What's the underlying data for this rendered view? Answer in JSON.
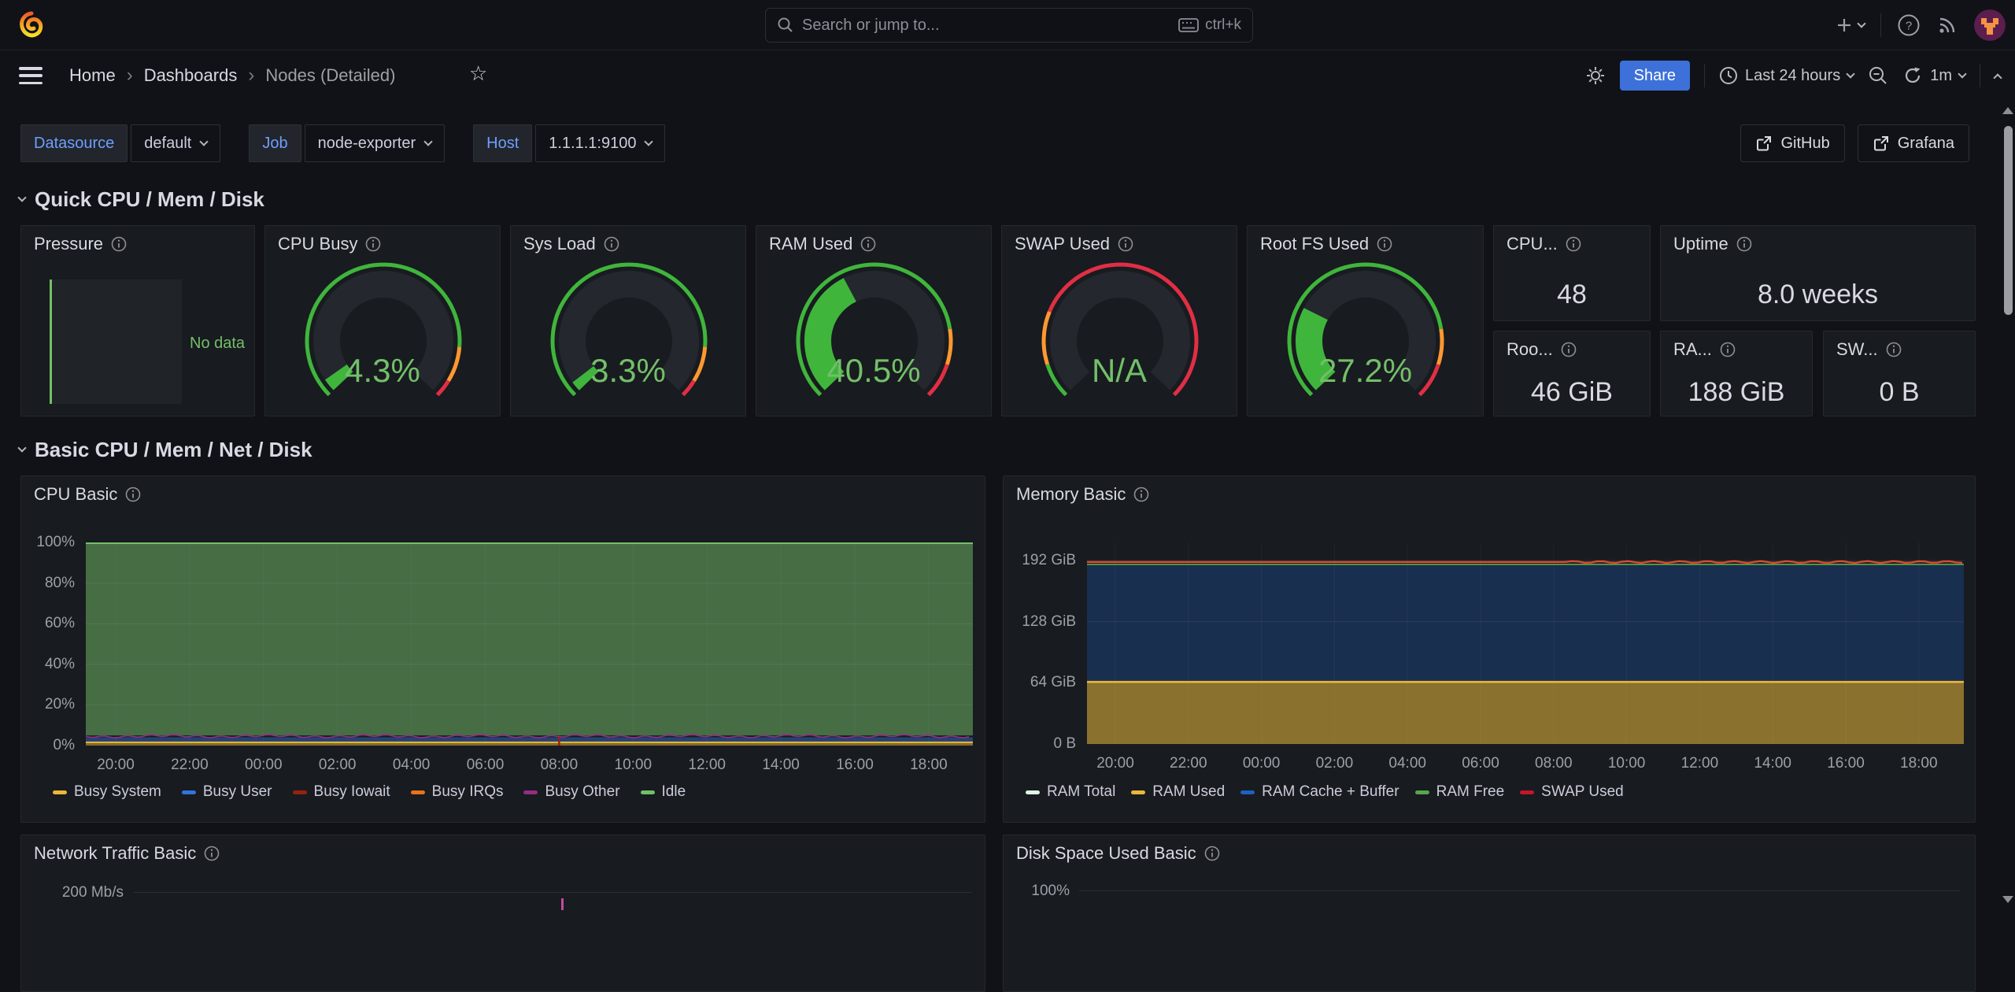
{
  "colors": {
    "accent_blue": "#3d71d9",
    "link_blue": "#6e9fff",
    "green": "#3fb53c",
    "orange": "#ff9830",
    "red": "#e02f44",
    "value_green": "#73bf69",
    "gauge_body": "#24272d"
  },
  "nav": {
    "search": {
      "placeholder": "Search or jump to...",
      "shortcut": "ctrl+k"
    }
  },
  "breadcrumb": {
    "items": [
      "Home",
      "Dashboards",
      "Nodes (Detailed)"
    ]
  },
  "toolbar": {
    "share_label": "Share",
    "time_range": "Last 24 hours",
    "refresh_interval": "1m"
  },
  "filters": [
    {
      "label": "Datasource",
      "value": "default"
    },
    {
      "label": "Job",
      "value": "node-exporter"
    },
    {
      "label": "Host",
      "value": "1.1.1.1:9100"
    }
  ],
  "dash_links": [
    {
      "label": "GitHub"
    },
    {
      "label": "Grafana"
    }
  ],
  "sections": [
    {
      "title": "Quick CPU / Mem / Disk"
    },
    {
      "title": "Basic CPU / Mem / Net / Disk"
    }
  ],
  "panels": {
    "pressure": {
      "title": "Pressure",
      "status": "No data"
    },
    "gauges": [
      {
        "title": "CPU Busy",
        "value": 4.3,
        "display": "4.3%",
        "thresholds": [
          85,
          95
        ]
      },
      {
        "title": "Sys Load",
        "value": 3.3,
        "display": "3.3%",
        "thresholds": [
          85,
          95
        ]
      },
      {
        "title": "RAM Used",
        "value": 40.5,
        "display": "40.5%",
        "thresholds": [
          80,
          90
        ]
      },
      {
        "title": "SWAP Used",
        "value": 0,
        "display": "N/A",
        "thresholds": [
          10,
          25
        ]
      },
      {
        "title": "Root FS Used",
        "value": 27.2,
        "display": "27.2%",
        "thresholds": [
          80,
          90
        ]
      }
    ],
    "stats": [
      {
        "title": "CPU...",
        "value": "48"
      },
      {
        "title": "Uptime",
        "value": "8.0 weeks"
      },
      {
        "title": "Roo...",
        "value": "46 GiB"
      },
      {
        "title": "RA...",
        "value": "188 GiB"
      },
      {
        "title": "SW...",
        "value": "0 B"
      }
    ],
    "network_basic": {
      "title": "Network Traffic Basic",
      "first_tick": "200 Mb/s"
    },
    "disk_basic": {
      "title": "Disk Space Used Basic",
      "first_tick": "100%"
    }
  },
  "chart_data": [
    {
      "panel": "CPU Basic",
      "type": "area",
      "stacked": true,
      "unit": "percent",
      "ylim": [
        0,
        100
      ],
      "y_ticks": [
        "0%",
        "20%",
        "40%",
        "60%",
        "80%",
        "100%"
      ],
      "x_ticks": [
        "20:00",
        "22:00",
        "00:00",
        "02:00",
        "04:00",
        "06:00",
        "08:00",
        "10:00",
        "12:00",
        "14:00",
        "16:00",
        "18:00"
      ],
      "legend_position": "bottom",
      "grid": true,
      "series": [
        {
          "name": "Busy System",
          "color": "#eab839",
          "approx_pct": 1.6
        },
        {
          "name": "Busy User",
          "color": "#3274d9",
          "approx_pct": 2.5
        },
        {
          "name": "Busy Iowait",
          "color": "#96230f",
          "approx_pct": 0.2
        },
        {
          "name": "Busy IRQs",
          "color": "#e8731a",
          "approx_pct": 0.1
        },
        {
          "name": "Busy Other",
          "color": "#962d82",
          "approx_pct": 0.6
        },
        {
          "name": "Idle",
          "color": "#73bf69",
          "approx_pct": 95.0
        }
      ],
      "annotations": [
        {
          "type": "spike",
          "series": "Busy Iowait",
          "x_tick": "08:00"
        }
      ]
    },
    {
      "panel": "Memory Basic",
      "type": "area",
      "stacked": true,
      "unit": "GiB",
      "ylim": [
        0,
        210
      ],
      "y_ticks": [
        "0 B",
        "64 GiB",
        "128 GiB",
        "192 GiB"
      ],
      "y_tick_values": [
        0,
        64,
        128,
        192
      ],
      "x_ticks": [
        "20:00",
        "22:00",
        "00:00",
        "02:00",
        "04:00",
        "06:00",
        "08:00",
        "10:00",
        "12:00",
        "14:00",
        "16:00",
        "18:00"
      ],
      "legend_position": "bottom",
      "grid": true,
      "series": [
        {
          "name": "RAM Total",
          "color": "#dcf5e2",
          "approx_gib": 188
        },
        {
          "name": "RAM Used",
          "color": "#eab839",
          "approx_gib": 65
        },
        {
          "name": "RAM Cache + Buffer",
          "color": "#1f60c4",
          "approx_gib": 122
        },
        {
          "name": "RAM Free",
          "color": "#56a64b",
          "approx_gib": 2
        },
        {
          "name": "SWAP Used",
          "color": "#c4162a",
          "approx_gib": 0
        }
      ]
    },
    {
      "panel": "Network Traffic Basic",
      "type": "area",
      "visible": "partial",
      "first_y_tick": "200 Mb/s"
    },
    {
      "panel": "Disk Space Used Basic",
      "type": "area",
      "visible": "partial",
      "first_y_tick": "100%"
    }
  ]
}
